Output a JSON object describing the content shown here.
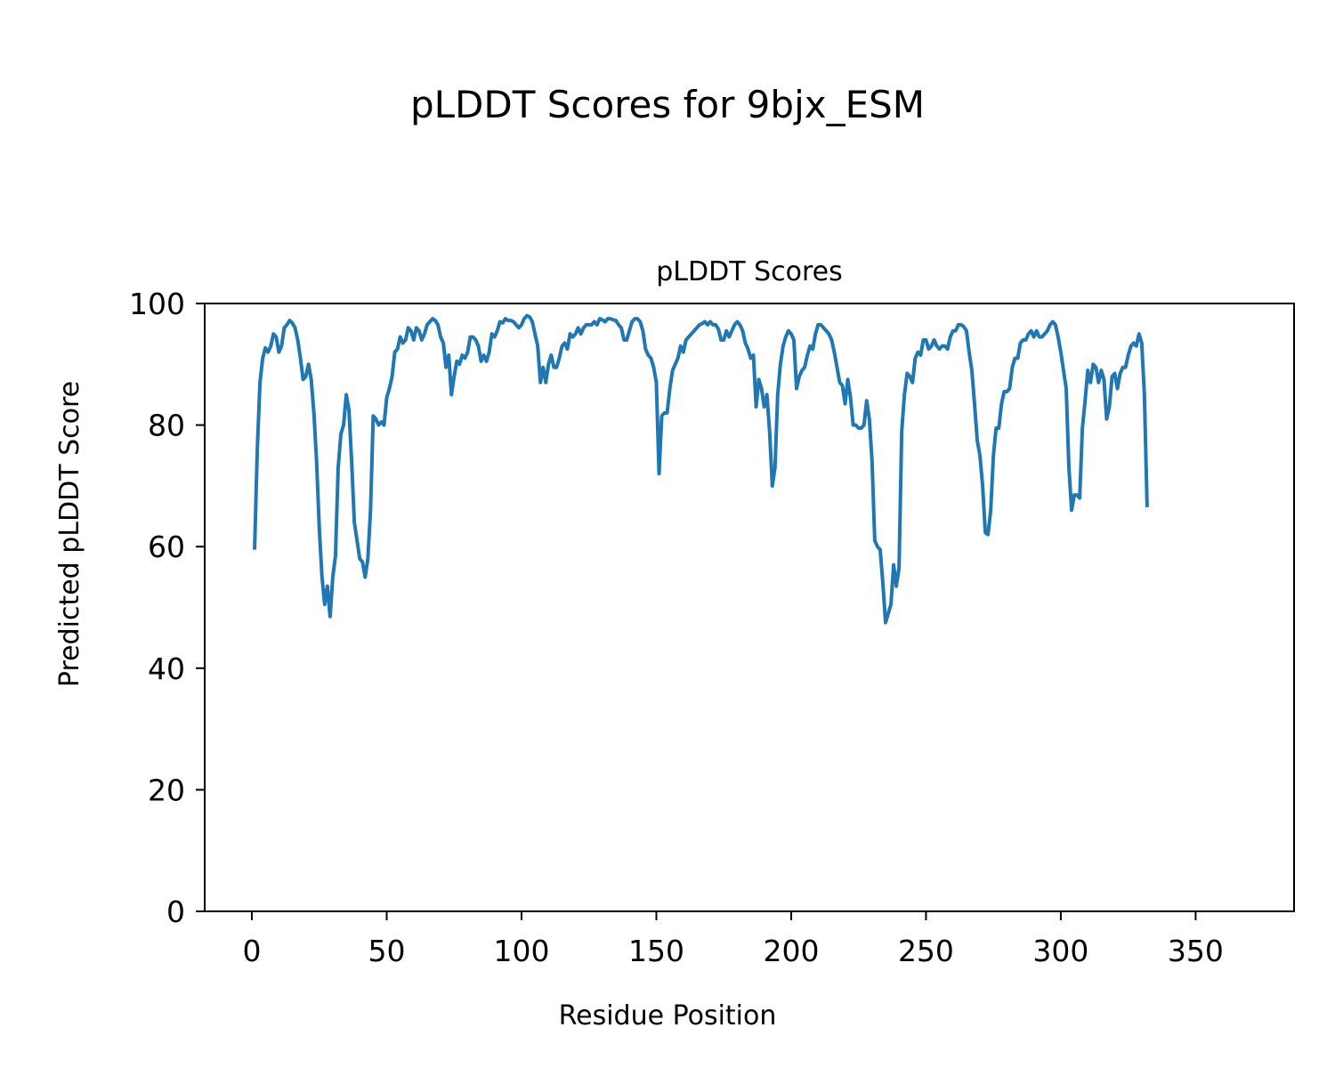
{
  "figure": {
    "suptitle": "pLDDT Scores for 9bjx_ESM"
  },
  "chart_data": {
    "type": "line",
    "title": "pLDDT Scores",
    "xlabel": "Residue Position",
    "ylabel": "Predicted pLDDT Score",
    "xlim": [
      -17.5,
      386.5
    ],
    "ylim": [
      0,
      100
    ],
    "xticks": [
      0,
      50,
      100,
      150,
      200,
      250,
      300,
      350
    ],
    "yticks": [
      0,
      20,
      40,
      60,
      80,
      100
    ],
    "grid": false,
    "color": "#1f77b4",
    "series": [
      {
        "points": [
          [
            1,
            59.5
          ],
          [
            2,
            76
          ],
          [
            3,
            87
          ],
          [
            4,
            91
          ],
          [
            5,
            92.7
          ],
          [
            6,
            92
          ],
          [
            7,
            93
          ],
          [
            8,
            95
          ],
          [
            9,
            94.5
          ],
          [
            10,
            92
          ],
          [
            11,
            93
          ],
          [
            12,
            96
          ],
          [
            13,
            96.5
          ],
          [
            14,
            97.2
          ],
          [
            15,
            96.8
          ],
          [
            16,
            96
          ],
          [
            17,
            94
          ],
          [
            18,
            91
          ],
          [
            19,
            87.5
          ],
          [
            20,
            88
          ],
          [
            21,
            90
          ],
          [
            22,
            87.5
          ],
          [
            23,
            82
          ],
          [
            24,
            74
          ],
          [
            25,
            63
          ],
          [
            26,
            55
          ],
          [
            27,
            50.5
          ],
          [
            28,
            53.5
          ],
          [
            29,
            48.5
          ],
          [
            30,
            55
          ],
          [
            31,
            58.5
          ],
          [
            32,
            73
          ],
          [
            33,
            78.5
          ],
          [
            34,
            80
          ],
          [
            35,
            85
          ],
          [
            36,
            82.5
          ],
          [
            37,
            74
          ],
          [
            38,
            64
          ],
          [
            39,
            61
          ],
          [
            40,
            58
          ],
          [
            41,
            57.5
          ],
          [
            42,
            55
          ],
          [
            43,
            58
          ],
          [
            44,
            66
          ],
          [
            45,
            81.5
          ],
          [
            46,
            81
          ],
          [
            47,
            80
          ],
          [
            48,
            80.5
          ],
          [
            49,
            80
          ],
          [
            50,
            84.5
          ],
          [
            51,
            86
          ],
          [
            52,
            88
          ],
          [
            53,
            92
          ],
          [
            54,
            92.5
          ],
          [
            55,
            94.5
          ],
          [
            56,
            93.5
          ],
          [
            57,
            94
          ],
          [
            58,
            96
          ],
          [
            59,
            95.5
          ],
          [
            60,
            94
          ],
          [
            61,
            96
          ],
          [
            62,
            95.5
          ],
          [
            63,
            94
          ],
          [
            64,
            95
          ],
          [
            65,
            96.5
          ],
          [
            66,
            97
          ],
          [
            67,
            97.5
          ],
          [
            68,
            97.2
          ],
          [
            69,
            96.5
          ],
          [
            70,
            94.5
          ],
          [
            71,
            93.5
          ],
          [
            72,
            89.5
          ],
          [
            73,
            91.5
          ],
          [
            74,
            85
          ],
          [
            75,
            88
          ],
          [
            76,
            90.5
          ],
          [
            77,
            90
          ],
          [
            78,
            91.5
          ],
          [
            79,
            91
          ],
          [
            80,
            92
          ],
          [
            81,
            94.5
          ],
          [
            82,
            94.5
          ],
          [
            83,
            94
          ],
          [
            84,
            93
          ],
          [
            85,
            90.5
          ],
          [
            86,
            91.5
          ],
          [
            87,
            90.5
          ],
          [
            88,
            92
          ],
          [
            89,
            95
          ],
          [
            90,
            94.5
          ],
          [
            91,
            95.5
          ],
          [
            92,
            97
          ],
          [
            93,
            96.8
          ],
          [
            94,
            97.5
          ],
          [
            95,
            97.2
          ],
          [
            96,
            97.2
          ],
          [
            97,
            97
          ],
          [
            98,
            96.5
          ],
          [
            99,
            96
          ],
          [
            100,
            96.5
          ],
          [
            101,
            97.5
          ],
          [
            102,
            98
          ],
          [
            103,
            97.8
          ],
          [
            104,
            97
          ],
          [
            105,
            95
          ],
          [
            106,
            93
          ],
          [
            107,
            87
          ],
          [
            108,
            89.5
          ],
          [
            109,
            87
          ],
          [
            110,
            90
          ],
          [
            111,
            91.5
          ],
          [
            112,
            89.5
          ],
          [
            113,
            89.5
          ],
          [
            114,
            91
          ],
          [
            115,
            93
          ],
          [
            116,
            93.5
          ],
          [
            117,
            92.5
          ],
          [
            118,
            95
          ],
          [
            119,
            94.5
          ],
          [
            120,
            95
          ],
          [
            121,
            96
          ],
          [
            122,
            95
          ],
          [
            123,
            96
          ],
          [
            124,
            96.5
          ],
          [
            125,
            96.5
          ],
          [
            126,
            96.5
          ],
          [
            127,
            97
          ],
          [
            128,
            96.5
          ],
          [
            129,
            97.5
          ],
          [
            130,
            97.3
          ],
          [
            131,
            97
          ],
          [
            132,
            97.5
          ],
          [
            133,
            97.5
          ],
          [
            134,
            97.3
          ],
          [
            135,
            97.2
          ],
          [
            136,
            96.5
          ],
          [
            137,
            96
          ],
          [
            138,
            94
          ],
          [
            139,
            94
          ],
          [
            140,
            95.5
          ],
          [
            141,
            97
          ],
          [
            142,
            97.5
          ],
          [
            143,
            97.5
          ],
          [
            144,
            97
          ],
          [
            145,
            95.5
          ],
          [
            146,
            92.5
          ],
          [
            147,
            91.5
          ],
          [
            148,
            91
          ],
          [
            149,
            89.5
          ],
          [
            150,
            87
          ],
          [
            151,
            72
          ],
          [
            152,
            81.5
          ],
          [
            153,
            82
          ],
          [
            154,
            82
          ],
          [
            155,
            86
          ],
          [
            156,
            89
          ],
          [
            157,
            90
          ],
          [
            158,
            91
          ],
          [
            159,
            93
          ],
          [
            160,
            92
          ],
          [
            161,
            94
          ],
          [
            162,
            94.5
          ],
          [
            163,
            95
          ],
          [
            164,
            95.5
          ],
          [
            165,
            96
          ],
          [
            166,
            96.5
          ],
          [
            167,
            96.7
          ],
          [
            168,
            97
          ],
          [
            169,
            96.5
          ],
          [
            170,
            97
          ],
          [
            171,
            96.5
          ],
          [
            172,
            96.5
          ],
          [
            173,
            95.8
          ],
          [
            174,
            94
          ],
          [
            175,
            94
          ],
          [
            176,
            95.5
          ],
          [
            177,
            94.5
          ],
          [
            178,
            95.5
          ],
          [
            179,
            96.5
          ],
          [
            180,
            97
          ],
          [
            181,
            96.5
          ],
          [
            182,
            95.5
          ],
          [
            183,
            93.5
          ],
          [
            184,
            92.5
          ],
          [
            185,
            91
          ],
          [
            186,
            91.5
          ],
          [
            187,
            83
          ],
          [
            188,
            87.5
          ],
          [
            189,
            86
          ],
          [
            190,
            83
          ],
          [
            191,
            85
          ],
          [
            192,
            79
          ],
          [
            193,
            70
          ],
          [
            194,
            73
          ],
          [
            195,
            85
          ],
          [
            196,
            90
          ],
          [
            197,
            93
          ],
          [
            198,
            94.5
          ],
          [
            199,
            95.5
          ],
          [
            200,
            95
          ],
          [
            201,
            94
          ],
          [
            202,
            86
          ],
          [
            203,
            88
          ],
          [
            204,
            89
          ],
          [
            205,
            89.5
          ],
          [
            206,
            91.5
          ],
          [
            207,
            93
          ],
          [
            208,
            92.5
          ],
          [
            209,
            95
          ],
          [
            210,
            96.5
          ],
          [
            211,
            96.5
          ],
          [
            212,
            96
          ],
          [
            213,
            95.5
          ],
          [
            214,
            95
          ],
          [
            215,
            94
          ],
          [
            216,
            92
          ],
          [
            217,
            89.5
          ],
          [
            218,
            87
          ],
          [
            219,
            86.5
          ],
          [
            220,
            83.5
          ],
          [
            221,
            87.5
          ],
          [
            222,
            84.5
          ],
          [
            223,
            80
          ],
          [
            224,
            80
          ],
          [
            225,
            79.5
          ],
          [
            226,
            79.5
          ],
          [
            227,
            80
          ],
          [
            228,
            84
          ],
          [
            229,
            81
          ],
          [
            230,
            74
          ],
          [
            231,
            61
          ],
          [
            232,
            60
          ],
          [
            233,
            59.5
          ],
          [
            234,
            54
          ],
          [
            235,
            47.5
          ],
          [
            236,
            49
          ],
          [
            237,
            50.5
          ],
          [
            238,
            57
          ],
          [
            239,
            53.5
          ],
          [
            240,
            56.5
          ],
          [
            241,
            79
          ],
          [
            242,
            85
          ],
          [
            243,
            88.5
          ],
          [
            244,
            88
          ],
          [
            245,
            87
          ],
          [
            246,
            91
          ],
          [
            247,
            92
          ],
          [
            248,
            91.5
          ],
          [
            249,
            94
          ],
          [
            250,
            94
          ],
          [
            251,
            92.5
          ],
          [
            252,
            93
          ],
          [
            253,
            94
          ],
          [
            254,
            93
          ],
          [
            255,
            92.5
          ],
          [
            256,
            93
          ],
          [
            257,
            93
          ],
          [
            258,
            92.5
          ],
          [
            259,
            94.5
          ],
          [
            260,
            95.5
          ],
          [
            261,
            95.5
          ],
          [
            262,
            96.5
          ],
          [
            263,
            96.5
          ],
          [
            264,
            96.2
          ],
          [
            265,
            95.5
          ],
          [
            266,
            92
          ],
          [
            267,
            89
          ],
          [
            268,
            83.5
          ],
          [
            269,
            77.5
          ],
          [
            270,
            75
          ],
          [
            271,
            70
          ],
          [
            272,
            62.3
          ],
          [
            273,
            62
          ],
          [
            274,
            66
          ],
          [
            275,
            75
          ],
          [
            276,
            79.5
          ],
          [
            277,
            79.5
          ],
          [
            278,
            83.5
          ],
          [
            279,
            85.5
          ],
          [
            280,
            85.5
          ],
          [
            281,
            86
          ],
          [
            282,
            89.5
          ],
          [
            283,
            91
          ],
          [
            284,
            91
          ],
          [
            285,
            93.5
          ],
          [
            286,
            94
          ],
          [
            287,
            94
          ],
          [
            288,
            95
          ],
          [
            289,
            95.5
          ],
          [
            290,
            94.5
          ],
          [
            291,
            95.5
          ],
          [
            292,
            94.5
          ],
          [
            293,
            94.5
          ],
          [
            294,
            95
          ],
          [
            295,
            95.5
          ],
          [
            296,
            96.5
          ],
          [
            297,
            97
          ],
          [
            298,
            96.5
          ],
          [
            299,
            94.5
          ],
          [
            300,
            92
          ],
          [
            301,
            89
          ],
          [
            302,
            86
          ],
          [
            303,
            73
          ],
          [
            304,
            66
          ],
          [
            305,
            68.5
          ],
          [
            306,
            68.5
          ],
          [
            307,
            68
          ],
          [
            308,
            79.5
          ],
          [
            309,
            84
          ],
          [
            310,
            89
          ],
          [
            311,
            87
          ],
          [
            312,
            90
          ],
          [
            313,
            89.5
          ],
          [
            314,
            87
          ],
          [
            315,
            89
          ],
          [
            316,
            87.5
          ],
          [
            317,
            81
          ],
          [
            318,
            83
          ],
          [
            319,
            88
          ],
          [
            320,
            88.5
          ],
          [
            321,
            86
          ],
          [
            322,
            88.5
          ],
          [
            323,
            89.5
          ],
          [
            324,
            89.5
          ],
          [
            325,
            91.5
          ],
          [
            326,
            93
          ],
          [
            327,
            93.5
          ],
          [
            328,
            93
          ],
          [
            329,
            95
          ],
          [
            330,
            93.5
          ],
          [
            331,
            85
          ],
          [
            332,
            66.5
          ]
        ]
      }
    ]
  }
}
